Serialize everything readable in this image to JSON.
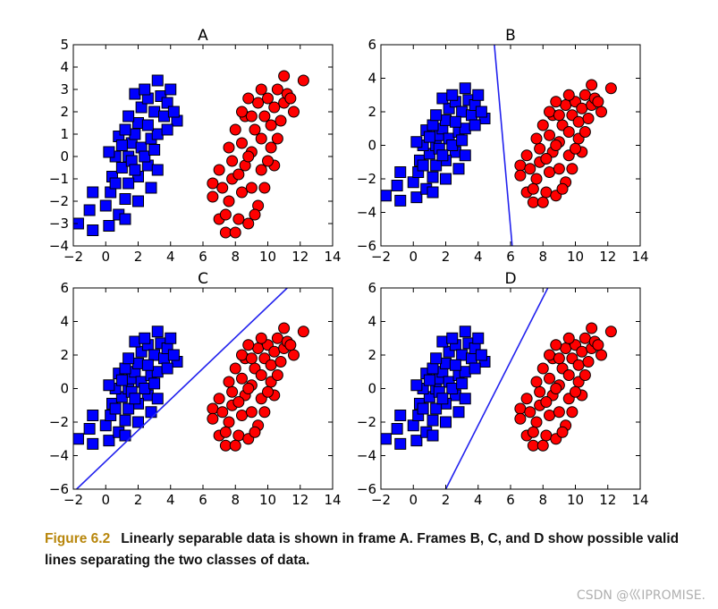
{
  "chart_data": [
    {
      "type": "scatter",
      "title": "A",
      "xlim": [
        -2,
        14
      ],
      "ylim": [
        -4,
        5
      ],
      "xticks": [
        "−2",
        "0",
        "2",
        "4",
        "6",
        "8",
        "10",
        "12",
        "14"
      ],
      "yticks": [
        "−4",
        "−3",
        "−2",
        "−1",
        "0",
        "1",
        "2",
        "3",
        "4",
        "5"
      ],
      "xtick_values": [
        -2,
        0,
        2,
        4,
        6,
        8,
        10,
        12,
        14
      ],
      "ytick_values": [
        -4,
        -3,
        -2,
        -1,
        0,
        1,
        2,
        3,
        4,
        5
      ],
      "separator": null
    },
    {
      "type": "scatter",
      "title": "B",
      "xlim": [
        -2,
        14
      ],
      "ylim": [
        -6,
        6
      ],
      "xticks": [
        "−2",
        "0",
        "2",
        "4",
        "6",
        "8",
        "10",
        "12",
        "14"
      ],
      "yticks": [
        "−6",
        "−4",
        "−2",
        "0",
        "2",
        "4",
        "6"
      ],
      "xtick_values": [
        -2,
        0,
        2,
        4,
        6,
        8,
        10,
        12,
        14
      ],
      "ytick_values": [
        -6,
        -4,
        -2,
        0,
        2,
        4,
        6
      ],
      "separator": [
        [
          5.0,
          6.0
        ],
        [
          6.1,
          -6.0
        ]
      ]
    },
    {
      "type": "scatter",
      "title": "C",
      "xlim": [
        -2,
        14
      ],
      "ylim": [
        -6,
        6
      ],
      "xticks": [
        "−2",
        "0",
        "2",
        "4",
        "6",
        "8",
        "10",
        "12",
        "14"
      ],
      "yticks": [
        "−6",
        "−4",
        "−2",
        "0",
        "2",
        "4",
        "6"
      ],
      "xtick_values": [
        -2,
        0,
        2,
        4,
        6,
        8,
        10,
        12,
        14
      ],
      "ytick_values": [
        -6,
        -4,
        -2,
        0,
        2,
        4,
        6
      ],
      "separator": [
        [
          -1.8,
          -6.0
        ],
        [
          11.2,
          6.0
        ]
      ]
    },
    {
      "type": "scatter",
      "title": "D",
      "xlim": [
        -2,
        14
      ],
      "ylim": [
        -6,
        6
      ],
      "xticks": [
        "−2",
        "0",
        "2",
        "4",
        "6",
        "8",
        "10",
        "12",
        "14"
      ],
      "yticks": [
        "−6",
        "−4",
        "−2",
        "0",
        "2",
        "4",
        "6"
      ],
      "xtick_values": [
        -2,
        0,
        2,
        4,
        6,
        8,
        10,
        12,
        14
      ],
      "ytick_values": [
        -6,
        -4,
        -2,
        0,
        2,
        4,
        6
      ],
      "separator": [
        [
          2.0,
          -6.0
        ],
        [
          8.3,
          6.0
        ]
      ]
    }
  ],
  "classes": [
    {
      "marker": "square",
      "color": "#0000ff",
      "edge": "#000000"
    },
    {
      "marker": "circle",
      "color": "#ff0000",
      "edge": "#000000"
    }
  ],
  "points_class1": [
    [
      -1.7,
      -3.0
    ],
    [
      -0.8,
      -3.3
    ],
    [
      0.2,
      -3.1
    ],
    [
      -1.0,
      -2.4
    ],
    [
      0.0,
      -2.2
    ],
    [
      0.8,
      -2.6
    ],
    [
      -0.8,
      -1.6
    ],
    [
      0.3,
      -1.6
    ],
    [
      1.2,
      -1.9
    ],
    [
      0.4,
      -0.9
    ],
    [
      1.0,
      -0.5
    ],
    [
      0.6,
      0.0
    ],
    [
      1.4,
      0.0
    ],
    [
      1.6,
      0.6
    ],
    [
      0.8,
      0.9
    ],
    [
      1.8,
      1.0
    ],
    [
      2.0,
      1.5
    ],
    [
      1.2,
      1.2
    ],
    [
      2.2,
      0.4
    ],
    [
      2.8,
      0.8
    ],
    [
      1.4,
      1.8
    ],
    [
      2.2,
      2.2
    ],
    [
      2.6,
      2.6
    ],
    [
      1.8,
      2.8
    ],
    [
      3.0,
      2.0
    ],
    [
      3.2,
      1.0
    ],
    [
      3.4,
      2.7
    ],
    [
      3.6,
      1.8
    ],
    [
      3.8,
      2.4
    ],
    [
      2.4,
      3.0
    ],
    [
      3.2,
      3.4
    ],
    [
      4.0,
      3.0
    ],
    [
      4.4,
      1.6
    ],
    [
      2.6,
      -0.4
    ],
    [
      3.2,
      -0.6
    ],
    [
      2.0,
      -0.9
    ],
    [
      1.6,
      -0.2
    ],
    [
      2.4,
      0.0
    ],
    [
      3.0,
      0.3
    ],
    [
      1.0,
      0.5
    ],
    [
      0.2,
      0.2
    ],
    [
      1.4,
      -1.2
    ],
    [
      2.0,
      -2.0
    ],
    [
      1.2,
      -2.8
    ],
    [
      0.6,
      -1.2
    ],
    [
      2.6,
      1.4
    ],
    [
      3.8,
      1.2
    ],
    [
      4.2,
      2.0
    ],
    [
      2.8,
      -1.4
    ],
    [
      1.8,
      -0.6
    ]
  ],
  "points_class2": [
    [
      6.6,
      -1.2
    ],
    [
      6.6,
      -1.8
    ],
    [
      7.0,
      -2.8
    ],
    [
      7.0,
      -0.6
    ],
    [
      7.4,
      -3.4
    ],
    [
      7.6,
      -2.0
    ],
    [
      7.8,
      -1.0
    ],
    [
      7.8,
      -0.2
    ],
    [
      8.2,
      -2.8
    ],
    [
      8.4,
      -1.6
    ],
    [
      8.4,
      0.6
    ],
    [
      8.0,
      1.2
    ],
    [
      8.6,
      -0.4
    ],
    [
      8.6,
      1.8
    ],
    [
      8.8,
      -3.0
    ],
    [
      9.0,
      -1.4
    ],
    [
      9.0,
      0.2
    ],
    [
      9.2,
      1.2
    ],
    [
      9.4,
      2.4
    ],
    [
      9.4,
      -2.2
    ],
    [
      9.6,
      -0.6
    ],
    [
      9.6,
      0.8
    ],
    [
      9.8,
      1.8
    ],
    [
      10.0,
      2.6
    ],
    [
      10.2,
      0.4
    ],
    [
      10.2,
      1.4
    ],
    [
      10.4,
      2.2
    ],
    [
      10.6,
      3.0
    ],
    [
      10.8,
      1.6
    ],
    [
      11.0,
      2.4
    ],
    [
      11.0,
      3.6
    ],
    [
      11.2,
      2.8
    ],
    [
      10.4,
      -0.4
    ],
    [
      8.8,
      2.6
    ],
    [
      7.6,
      0.4
    ],
    [
      9.8,
      -1.4
    ],
    [
      12.2,
      3.4
    ],
    [
      11.6,
      2.0
    ],
    [
      8.2,
      -0.8
    ],
    [
      9.2,
      -2.6
    ],
    [
      10.0,
      -0.2
    ],
    [
      8.4,
      2.0
    ],
    [
      7.2,
      -1.4
    ],
    [
      9.6,
      3.0
    ],
    [
      10.6,
      0.8
    ],
    [
      9.0,
      1.8
    ],
    [
      8.0,
      -3.4
    ],
    [
      7.4,
      -2.6
    ],
    [
      11.4,
      2.6
    ],
    [
      8.8,
      0.0
    ]
  ],
  "caption": {
    "label": "Figure 6.2",
    "text": "Linearly separable data is shown in frame A. Frames B, C, and D show possible valid lines separating the two classes of data."
  },
  "watermark": "CSDN @巛IPROMISE."
}
